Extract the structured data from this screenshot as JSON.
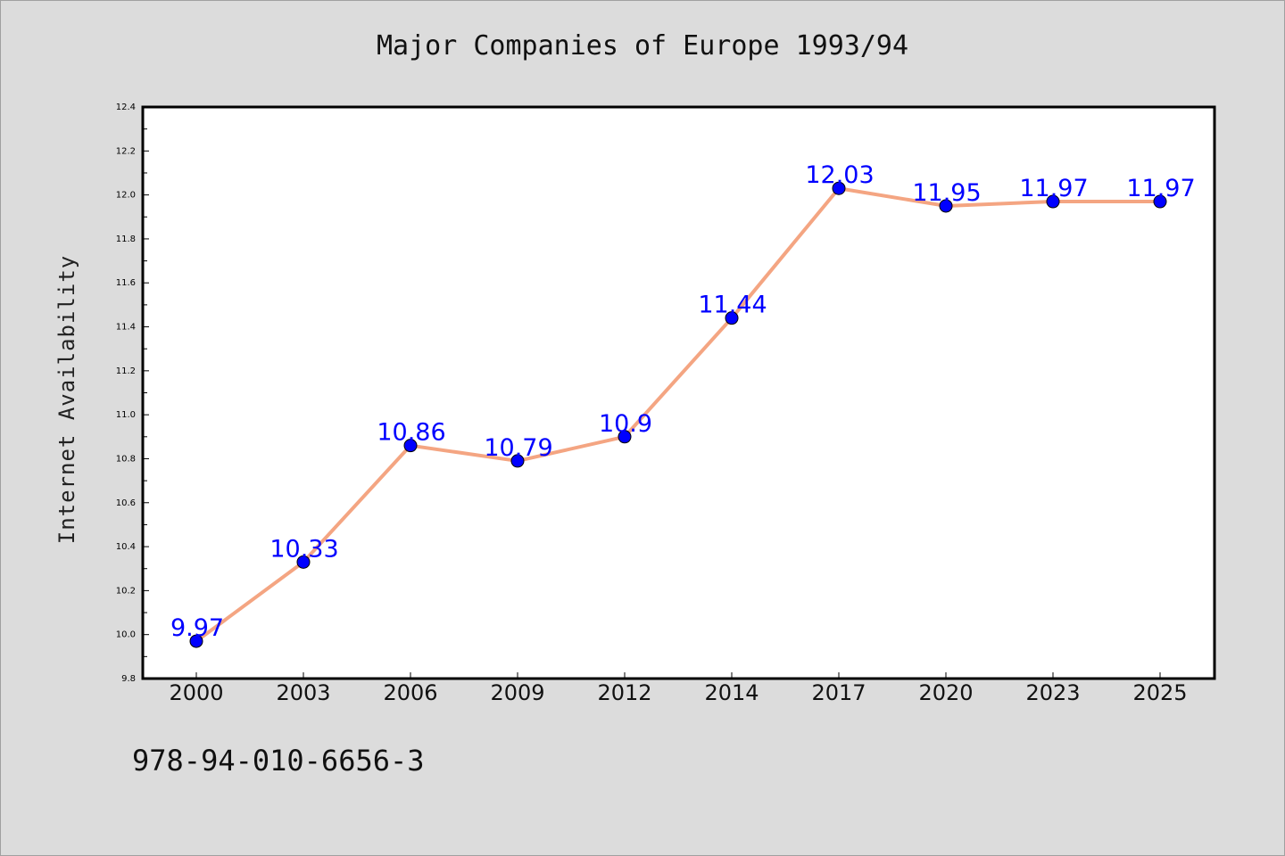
{
  "title": "Major Companies of Europe 1993/94",
  "footer_text": "978-94-010-6656-3",
  "colors": {
    "line": "#f4a582",
    "marker": "#0000ff",
    "label": "#0000ff",
    "background": "#dcdcdc",
    "plot_bg": "#ffffff"
  },
  "chart_data": {
    "type": "line",
    "title": "Major Companies of Europe 1993/94",
    "xlabel": "",
    "ylabel": "Internet Availability",
    "categories": [
      "2000",
      "2003",
      "2006",
      "2009",
      "2012",
      "2014",
      "2017",
      "2020",
      "2023",
      "2025"
    ],
    "series": [
      {
        "values": [
          9.97,
          10.33,
          10.86,
          10.79,
          10.9,
          11.44,
          12.03,
          11.95,
          11.97,
          11.97
        ],
        "data_labels": [
          "9.97",
          "10.33",
          "10.86",
          "10.79",
          "10.9",
          "11.44",
          "12.03",
          "11.95",
          "11.97",
          "11.97"
        ]
      }
    ],
    "ylim": [
      9.8,
      12.4
    ],
    "yticks": [
      "9.8",
      "10.0",
      "10.2",
      "10.4",
      "10.6",
      "10.8",
      "11.0",
      "11.2",
      "11.4",
      "11.6",
      "11.8",
      "12.0",
      "12.2",
      "12.4"
    ],
    "grid": false,
    "legend": "none"
  }
}
